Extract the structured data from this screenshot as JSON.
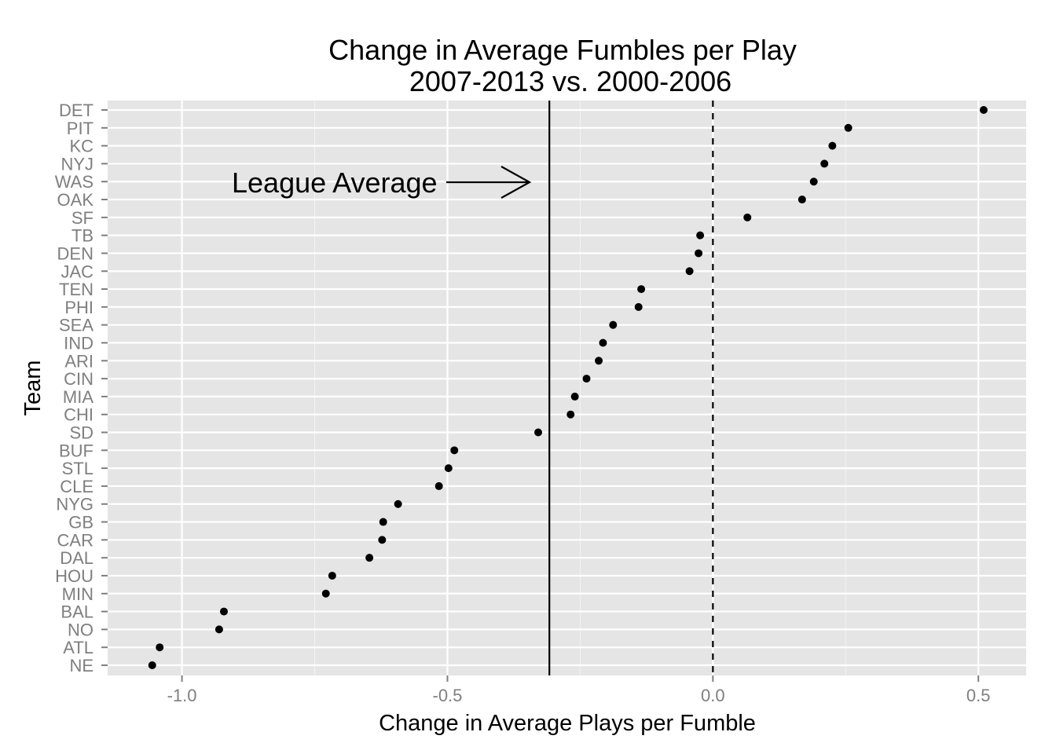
{
  "chart_data": {
    "type": "scatter",
    "title_line1": "Change in Average Fumbles per Play",
    "title_line2": "2007-2013 vs. 2000-2006",
    "xlabel": "Change in Average Plays per Fumble",
    "ylabel": "Team",
    "xlim": [
      -1.14,
      0.59
    ],
    "x_ticks": [
      -1.0,
      -0.5,
      0.0,
      0.5
    ],
    "x_tick_labels": [
      "-1.0",
      "-0.5",
      "0.0",
      "0.5"
    ],
    "grid": true,
    "points": [
      {
        "team": "DET",
        "x": 0.51
      },
      {
        "team": "PIT",
        "x": 0.255
      },
      {
        "team": "KC",
        "x": 0.225
      },
      {
        "team": "NYJ",
        "x": 0.21
      },
      {
        "team": "WAS",
        "x": 0.19
      },
      {
        "team": "OAK",
        "x": 0.168
      },
      {
        "team": "SF",
        "x": 0.065
      },
      {
        "team": "TB",
        "x": -0.024
      },
      {
        "team": "DEN",
        "x": -0.027
      },
      {
        "team": "JAC",
        "x": -0.044
      },
      {
        "team": "TEN",
        "x": -0.135
      },
      {
        "team": "PHI",
        "x": -0.14
      },
      {
        "team": "SEA",
        "x": -0.188
      },
      {
        "team": "IND",
        "x": -0.207
      },
      {
        "team": "ARI",
        "x": -0.215
      },
      {
        "team": "CIN",
        "x": -0.238
      },
      {
        "team": "MIA",
        "x": -0.26
      },
      {
        "team": "CHI",
        "x": -0.268
      },
      {
        "team": "SD",
        "x": -0.329
      },
      {
        "team": "BUF",
        "x": -0.487
      },
      {
        "team": "STL",
        "x": -0.498
      },
      {
        "team": "CLE",
        "x": -0.516
      },
      {
        "team": "NYG",
        "x": -0.593
      },
      {
        "team": "GB",
        "x": -0.621
      },
      {
        "team": "CAR",
        "x": -0.623
      },
      {
        "team": "DAL",
        "x": -0.647
      },
      {
        "team": "HOU",
        "x": -0.717
      },
      {
        "team": "MIN",
        "x": -0.729
      },
      {
        "team": "BAL",
        "x": -0.921
      },
      {
        "team": "NO",
        "x": -0.93
      },
      {
        "team": "ATL",
        "x": -1.042
      },
      {
        "team": "NE",
        "x": -1.056
      }
    ],
    "league_average_line_x": -0.308,
    "zero_line_x": 0.0,
    "annotation_text": "League Average",
    "colors": {
      "panel": "#e5e5e5",
      "grid": "#ffffff",
      "points": "#000000",
      "tick_text": "#7f7f7f"
    }
  }
}
